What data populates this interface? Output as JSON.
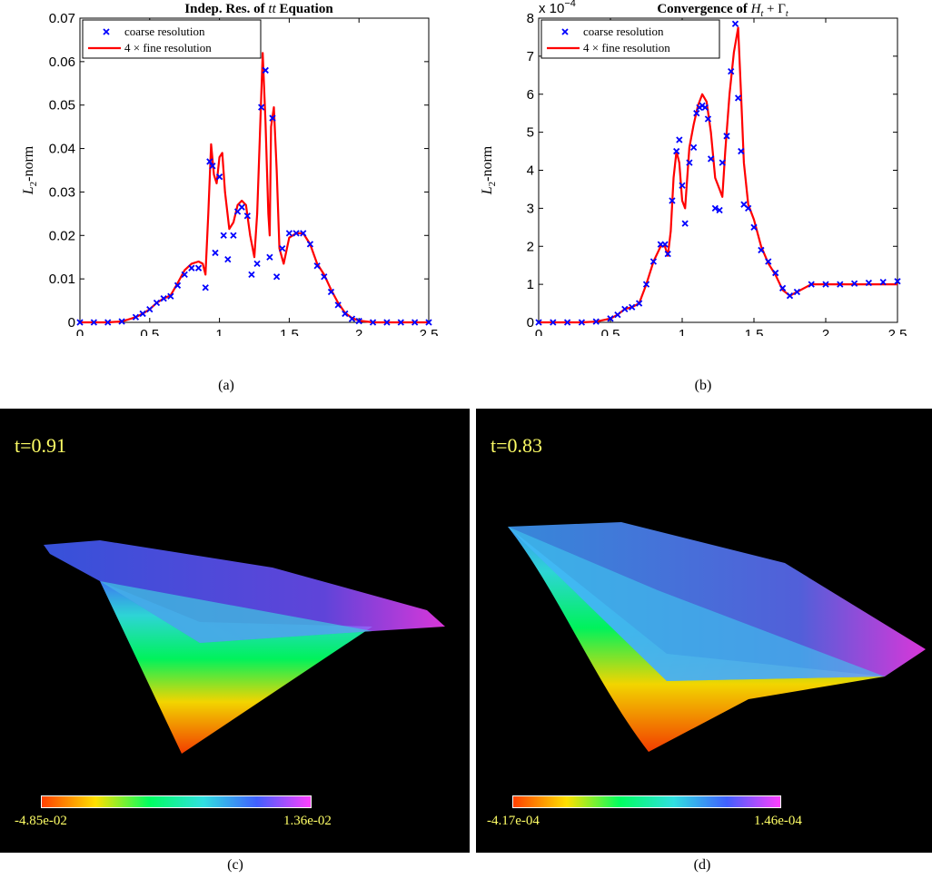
{
  "chart_data": [
    {
      "type": "line",
      "title": "Indep. Res. of tt Equation",
      "xlabel": "time",
      "ylabel": "L2-norm",
      "xlim": [
        0,
        2.5
      ],
      "ylim": [
        0,
        0.07
      ],
      "xticks": [
        "0",
        "0.5",
        "1",
        "1.5",
        "2",
        "2.5"
      ],
      "yticks": [
        "0",
        "0.01",
        "0.02",
        "0.03",
        "0.04",
        "0.05",
        "0.06",
        "0.07"
      ],
      "scale_label": "",
      "grid": false,
      "legend": "top-left",
      "series": [
        {
          "name": "coarse resolution",
          "marker": "x",
          "color": "#0000ff",
          "x": [
            0.0,
            0.1,
            0.2,
            0.3,
            0.4,
            0.45,
            0.5,
            0.55,
            0.6,
            0.65,
            0.7,
            0.75,
            0.8,
            0.85,
            0.9,
            0.93,
            0.95,
            0.97,
            1.0,
            1.03,
            1.06,
            1.1,
            1.13,
            1.16,
            1.2,
            1.23,
            1.27,
            1.3,
            1.33,
            1.36,
            1.38,
            1.41,
            1.45,
            1.5,
            1.55,
            1.6,
            1.65,
            1.7,
            1.75,
            1.8,
            1.85,
            1.9,
            1.95,
            2.0,
            2.1,
            2.2,
            2.3,
            2.4,
            2.5
          ],
          "y": [
            0.0,
            0.0,
            0.0,
            0.0002,
            0.0012,
            0.002,
            0.003,
            0.0045,
            0.0055,
            0.006,
            0.0085,
            0.011,
            0.0125,
            0.0125,
            0.008,
            0.037,
            0.036,
            0.016,
            0.0335,
            0.02,
            0.0145,
            0.02,
            0.0255,
            0.0265,
            0.0245,
            0.011,
            0.0135,
            0.0495,
            0.058,
            0.015,
            0.047,
            0.0105,
            0.017,
            0.0205,
            0.0205,
            0.0205,
            0.018,
            0.013,
            0.0105,
            0.007,
            0.004,
            0.002,
            0.0008,
            0.0003,
            0.0,
            0.0,
            0.0,
            0.0,
            0.0
          ]
        },
        {
          "name": "4 × fine resolution",
          "marker": "line",
          "color": "#ff0000",
          "x": [
            0.0,
            0.1,
            0.2,
            0.3,
            0.4,
            0.45,
            0.5,
            0.55,
            0.6,
            0.65,
            0.7,
            0.75,
            0.8,
            0.85,
            0.88,
            0.9,
            0.92,
            0.94,
            0.96,
            0.98,
            1.0,
            1.02,
            1.04,
            1.07,
            1.1,
            1.13,
            1.16,
            1.19,
            1.22,
            1.25,
            1.27,
            1.29,
            1.31,
            1.33,
            1.35,
            1.36,
            1.37,
            1.39,
            1.41,
            1.43,
            1.46,
            1.5,
            1.55,
            1.6,
            1.65,
            1.7,
            1.75,
            1.8,
            1.85,
            1.9,
            1.95,
            2.0,
            2.1,
            2.2,
            2.3,
            2.4,
            2.5
          ],
          "y": [
            0.0,
            0.0,
            0.0,
            0.0002,
            0.0012,
            0.002,
            0.003,
            0.0045,
            0.0055,
            0.0062,
            0.009,
            0.012,
            0.0135,
            0.014,
            0.0135,
            0.011,
            0.025,
            0.041,
            0.034,
            0.032,
            0.038,
            0.039,
            0.03,
            0.0215,
            0.023,
            0.027,
            0.028,
            0.027,
            0.02,
            0.015,
            0.025,
            0.043,
            0.062,
            0.046,
            0.025,
            0.02,
            0.045,
            0.0495,
            0.035,
            0.017,
            0.0135,
            0.0195,
            0.0205,
            0.0205,
            0.018,
            0.0135,
            0.011,
            0.0075,
            0.0045,
            0.0022,
            0.001,
            0.0004,
            0.0,
            0.0,
            0.0,
            0.0,
            0.0
          ]
        }
      ]
    },
    {
      "type": "line",
      "title": "Convergence of Ht + Γt",
      "xlabel": "time",
      "ylabel": "L2-norm",
      "xlim": [
        0,
        2.5
      ],
      "ylim": [
        0,
        8
      ],
      "xticks": [
        "0",
        "0.5",
        "1",
        "1.5",
        "2",
        "2.5"
      ],
      "yticks": [
        "0",
        "1",
        "2",
        "3",
        "4",
        "5",
        "6",
        "7",
        "8"
      ],
      "scale_label": "x 10",
      "scale_exponent": "−4",
      "grid": false,
      "legend": "top-left",
      "series": [
        {
          "name": "coarse resolution",
          "marker": "x",
          "color": "#0000ff",
          "x": [
            0.0,
            0.1,
            0.2,
            0.3,
            0.4,
            0.5,
            0.55,
            0.6,
            0.65,
            0.7,
            0.75,
            0.8,
            0.85,
            0.88,
            0.9,
            0.93,
            0.96,
            0.98,
            1.0,
            1.02,
            1.05,
            1.08,
            1.1,
            1.12,
            1.14,
            1.16,
            1.18,
            1.2,
            1.23,
            1.26,
            1.28,
            1.31,
            1.34,
            1.37,
            1.39,
            1.41,
            1.43,
            1.46,
            1.5,
            1.55,
            1.6,
            1.65,
            1.7,
            1.75,
            1.8,
            1.9,
            2.0,
            2.1,
            2.2,
            2.3,
            2.4,
            2.5
          ],
          "y": [
            0.0,
            0.0,
            0.0,
            0.0,
            0.02,
            0.1,
            0.2,
            0.35,
            0.4,
            0.5,
            1.0,
            1.6,
            2.05,
            2.05,
            1.8,
            3.2,
            4.5,
            4.8,
            3.6,
            2.6,
            4.2,
            4.6,
            5.5,
            5.65,
            5.7,
            5.65,
            5.35,
            4.3,
            3.0,
            2.95,
            4.2,
            4.9,
            6.6,
            7.85,
            5.9,
            4.5,
            3.1,
            3.0,
            2.5,
            1.9,
            1.6,
            1.3,
            0.9,
            0.7,
            0.8,
            1.0,
            1.0,
            1.0,
            1.02,
            1.04,
            1.06,
            1.08
          ]
        },
        {
          "name": "4 × fine resolution",
          "marker": "line",
          "color": "#ff0000",
          "x": [
            0.0,
            0.1,
            0.2,
            0.3,
            0.4,
            0.5,
            0.55,
            0.6,
            0.65,
            0.7,
            0.75,
            0.8,
            0.85,
            0.88,
            0.9,
            0.92,
            0.94,
            0.96,
            0.98,
            1.0,
            1.02,
            1.05,
            1.08,
            1.11,
            1.14,
            1.17,
            1.2,
            1.23,
            1.26,
            1.28,
            1.3,
            1.33,
            1.36,
            1.39,
            1.41,
            1.43,
            1.46,
            1.5,
            1.55,
            1.6,
            1.65,
            1.7,
            1.75,
            1.8,
            1.9,
            2.0,
            2.1,
            2.2,
            2.3,
            2.4,
            2.5
          ],
          "y": [
            0.0,
            0.0,
            0.0,
            0.0,
            0.02,
            0.1,
            0.2,
            0.35,
            0.4,
            0.5,
            1.0,
            1.6,
            2.0,
            2.0,
            1.75,
            2.4,
            3.8,
            4.5,
            4.2,
            3.2,
            3.0,
            4.6,
            5.2,
            5.7,
            6.0,
            5.8,
            5.0,
            3.8,
            3.5,
            3.3,
            4.5,
            6.0,
            7.1,
            7.75,
            6.0,
            4.2,
            3.1,
            2.7,
            2.0,
            1.55,
            1.25,
            0.85,
            0.7,
            0.8,
            1.0,
            1.0,
            1.0,
            1.0,
            1.0,
            1.0,
            1.0
          ]
        }
      ]
    }
  ],
  "captions": {
    "a": "(a)",
    "b": "(b)",
    "c": "(c)",
    "d": "(d)"
  },
  "snapshots": [
    {
      "time_label": "t=0.91",
      "colorbar_min": "-4.85e-02",
      "colorbar_max": "1.36e-02",
      "colormap": [
        "#ff4000",
        "#ffe000",
        "#00ff60",
        "#30e0e0",
        "#4060ff",
        "#ff40ff"
      ]
    },
    {
      "time_label": "t=0.83",
      "colorbar_min": "-4.17e-04",
      "colorbar_max": "1.46e-04",
      "colormap": [
        "#ff4000",
        "#ffe000",
        "#00ff60",
        "#30e0e0",
        "#4060ff",
        "#ff40ff"
      ]
    }
  ],
  "colors": {
    "coarse": "#0000ff",
    "fine": "#ff0000",
    "viz_background": "#000000",
    "viz_text": "#ffff66"
  }
}
